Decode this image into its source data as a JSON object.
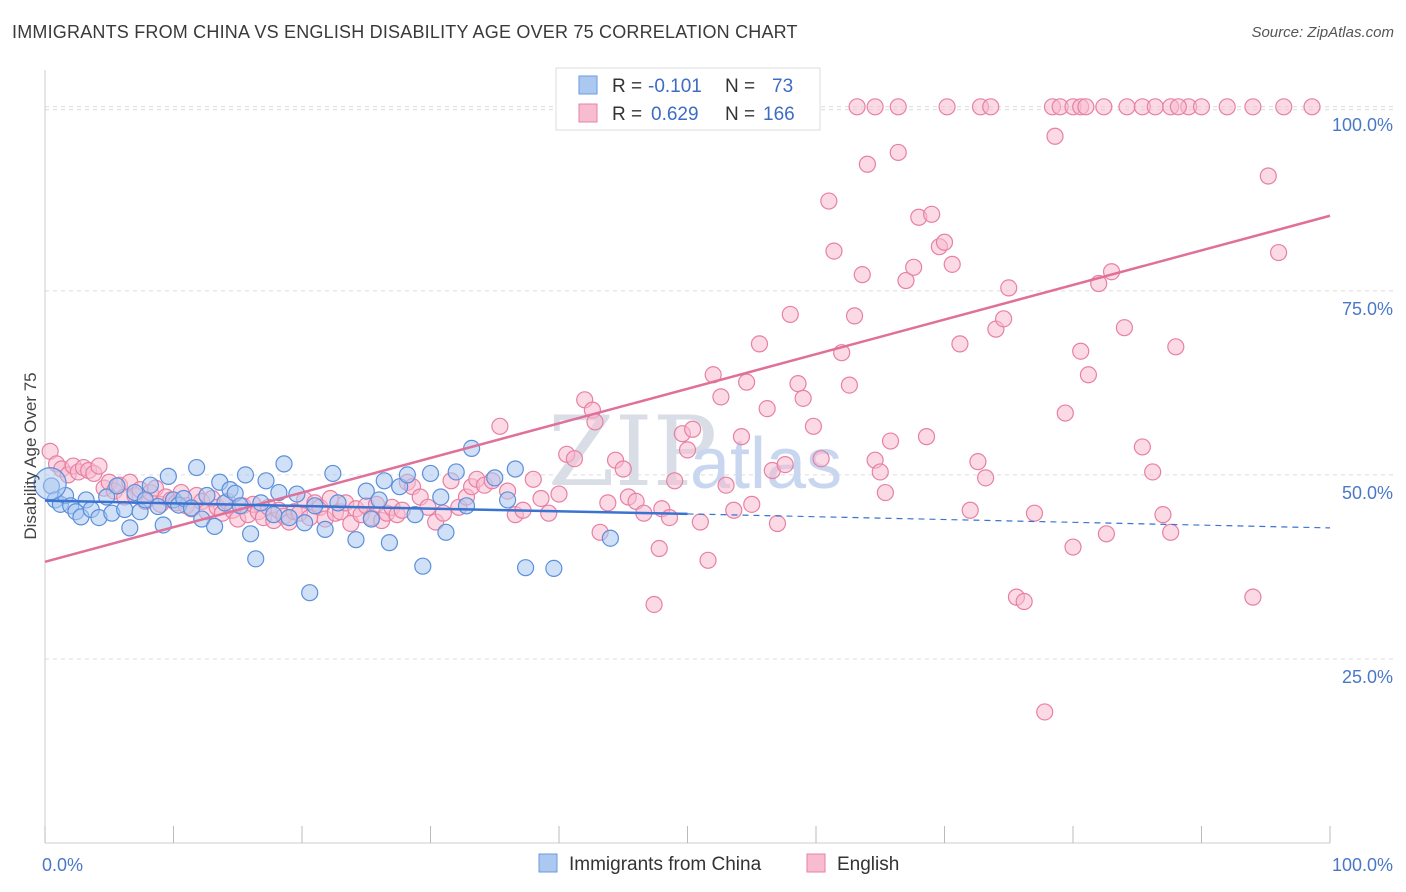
{
  "header": {
    "title": "IMMIGRANTS FROM CHINA VS ENGLISH DISABILITY AGE OVER 75 CORRELATION CHART",
    "source": "Source: ZipAtlas.com"
  },
  "watermark": {
    "zip": "ZIP",
    "atlas": "atlas"
  },
  "legend": {
    "rows": [
      {
        "r_label": "R = ",
        "r_value": "-0.101",
        "n_label": "N = ",
        "n_value": "73",
        "color": "#aac8f0",
        "stroke": "#6a9ae0"
      },
      {
        "r_label": "R = ",
        "r_value": "0.629",
        "n_label": "N = ",
        "n_value": "166",
        "color": "#f8bcd0",
        "stroke": "#e880a4"
      }
    ]
  },
  "chart_data": {
    "type": "scatter",
    "title": "IMMIGRANTS FROM CHINA VS ENGLISH DISABILITY AGE OVER 75 CORRELATION CHART",
    "xlabel": "",
    "ylabel": "Disability Age Over 75",
    "xlim": [
      0,
      100
    ],
    "ylim": [
      0,
      105
    ],
    "x_tick_labels": [
      "0.0%",
      "100.0%"
    ],
    "y_ticks": [
      25,
      50,
      75,
      100
    ],
    "y_tick_labels": [
      "25.0%",
      "50.0%",
      "75.0%",
      "100.0%"
    ],
    "grid": "horizontal-dashed",
    "legend_placement": "top-center",
    "series": [
      {
        "name": "Immigrants from China",
        "color": "#aac8f0",
        "stroke": "#5b8fdc",
        "line_color": "#3a73d0",
        "trend": {
          "x0": 0,
          "y0": 46.5,
          "x1": 50,
          "y1": 44.7,
          "dash_to_x": 100,
          "dash_to_y": 42.8
        },
        "points": [
          [
            0.5,
            48.5
          ],
          [
            0.8,
            46.6
          ],
          [
            1.2,
            46.0
          ],
          [
            1.6,
            47.2
          ],
          [
            2.0,
            45.8
          ],
          [
            2.4,
            45.0
          ],
          [
            2.8,
            44.3
          ],
          [
            3.2,
            46.6
          ],
          [
            3.6,
            45.3
          ],
          [
            4.2,
            44.2
          ],
          [
            4.8,
            47.0
          ],
          [
            5.2,
            44.8
          ],
          [
            5.6,
            48.5
          ],
          [
            6.2,
            45.3
          ],
          [
            6.6,
            42.8
          ],
          [
            7.0,
            47.6
          ],
          [
            7.4,
            45.0
          ],
          [
            7.8,
            46.6
          ],
          [
            8.2,
            48.6
          ],
          [
            8.8,
            45.7
          ],
          [
            9.2,
            43.2
          ],
          [
            9.6,
            49.8
          ],
          [
            10.0,
            46.6
          ],
          [
            10.4,
            45.9
          ],
          [
            10.8,
            46.8
          ],
          [
            11.4,
            45.5
          ],
          [
            11.8,
            51.0
          ],
          [
            12.2,
            44.0
          ],
          [
            12.6,
            47.2
          ],
          [
            13.2,
            43.0
          ],
          [
            13.6,
            49.0
          ],
          [
            14.0,
            46.2
          ],
          [
            14.4,
            48.0
          ],
          [
            14.8,
            47.5
          ],
          [
            15.2,
            45.8
          ],
          [
            15.6,
            50.0
          ],
          [
            16.0,
            42.0
          ],
          [
            16.4,
            38.6
          ],
          [
            16.8,
            46.2
          ],
          [
            17.2,
            49.2
          ],
          [
            17.8,
            44.6
          ],
          [
            18.2,
            47.6
          ],
          [
            18.6,
            51.5
          ],
          [
            19.0,
            44.2
          ],
          [
            19.6,
            47.4
          ],
          [
            20.2,
            43.5
          ],
          [
            20.6,
            34.0
          ],
          [
            21.0,
            45.8
          ],
          [
            21.8,
            42.6
          ],
          [
            22.4,
            50.2
          ],
          [
            22.8,
            46.2
          ],
          [
            24.2,
            41.2
          ],
          [
            25.0,
            47.8
          ],
          [
            25.4,
            44.0
          ],
          [
            26.0,
            46.6
          ],
          [
            26.4,
            49.2
          ],
          [
            26.8,
            40.8
          ],
          [
            27.6,
            48.4
          ],
          [
            28.2,
            50.0
          ],
          [
            28.8,
            44.6
          ],
          [
            29.4,
            37.6
          ],
          [
            30.0,
            50.2
          ],
          [
            30.8,
            47.0
          ],
          [
            31.2,
            42.2
          ],
          [
            32.0,
            50.4
          ],
          [
            32.8,
            45.8
          ],
          [
            33.2,
            53.6
          ],
          [
            35.0,
            49.6
          ],
          [
            36.0,
            46.6
          ],
          [
            36.6,
            50.8
          ],
          [
            37.4,
            37.4
          ],
          [
            39.6,
            37.3
          ],
          [
            44.0,
            41.4
          ]
        ]
      },
      {
        "name": "English",
        "color": "#f8bcd0",
        "stroke": "#e880a4",
        "line_color": "#e0709a",
        "trend": {
          "x0": 0,
          "y0": 38.2,
          "x1": 100,
          "y1": 85.2
        },
        "points": [
          [
            0.4,
            53.2
          ],
          [
            0.9,
            51.5
          ],
          [
            1.3,
            50.8
          ],
          [
            1.8,
            50.0
          ],
          [
            2.2,
            51.2
          ],
          [
            2.6,
            50.4
          ],
          [
            3.0,
            51.0
          ],
          [
            3.4,
            50.6
          ],
          [
            3.8,
            50.2
          ],
          [
            4.2,
            51.2
          ],
          [
            4.6,
            48.2
          ],
          [
            5.0,
            49.0
          ],
          [
            5.4,
            47.8
          ],
          [
            5.8,
            48.6
          ],
          [
            6.2,
            47.0
          ],
          [
            6.6,
            49.0
          ],
          [
            7.0,
            47.2
          ],
          [
            7.4,
            48.0
          ],
          [
            7.8,
            46.4
          ],
          [
            8.2,
            47.6
          ],
          [
            8.6,
            48.2
          ],
          [
            9.0,
            46.0
          ],
          [
            9.4,
            47.0
          ],
          [
            9.8,
            46.6
          ],
          [
            10.2,
            46.2
          ],
          [
            10.6,
            47.6
          ],
          [
            11.0,
            45.8
          ],
          [
            11.4,
            45.4
          ],
          [
            11.8,
            47.2
          ],
          [
            12.2,
            46.4
          ],
          [
            12.6,
            45.0
          ],
          [
            13.0,
            46.8
          ],
          [
            13.4,
            45.6
          ],
          [
            13.8,
            44.8
          ],
          [
            14.2,
            46.4
          ],
          [
            14.6,
            45.2
          ],
          [
            15.0,
            44.0
          ],
          [
            15.4,
            45.8
          ],
          [
            15.8,
            44.6
          ],
          [
            16.2,
            46.0
          ],
          [
            16.6,
            45.0
          ],
          [
            17.0,
            44.2
          ],
          [
            17.4,
            45.6
          ],
          [
            17.8,
            43.8
          ],
          [
            18.2,
            45.2
          ],
          [
            18.6,
            44.4
          ],
          [
            19.0,
            43.6
          ],
          [
            19.4,
            45.0
          ],
          [
            19.8,
            44.8
          ],
          [
            20.2,
            46.6
          ],
          [
            20.6,
            44.2
          ],
          [
            21.0,
            46.2
          ],
          [
            21.4,
            45.6
          ],
          [
            21.8,
            44.0
          ],
          [
            22.2,
            46.8
          ],
          [
            22.6,
            44.8
          ],
          [
            23.0,
            45.0
          ],
          [
            23.4,
            46.2
          ],
          [
            23.8,
            43.4
          ],
          [
            24.2,
            45.4
          ],
          [
            24.6,
            44.6
          ],
          [
            25.0,
            45.8
          ],
          [
            25.4,
            44.2
          ],
          [
            25.8,
            46.0
          ],
          [
            26.2,
            43.8
          ],
          [
            26.6,
            44.8
          ],
          [
            27.0,
            45.6
          ],
          [
            27.4,
            44.6
          ],
          [
            27.8,
            45.2
          ],
          [
            28.2,
            49.0
          ],
          [
            28.6,
            48.4
          ],
          [
            29.2,
            47.0
          ],
          [
            29.8,
            45.6
          ],
          [
            30.4,
            43.6
          ],
          [
            31.0,
            44.8
          ],
          [
            31.6,
            49.2
          ],
          [
            32.2,
            45.6
          ],
          [
            32.8,
            47.0
          ],
          [
            33.2,
            48.4
          ],
          [
            33.6,
            49.4
          ],
          [
            34.2,
            48.6
          ],
          [
            34.8,
            49.2
          ],
          [
            35.4,
            56.6
          ],
          [
            36.0,
            47.8
          ],
          [
            36.6,
            44.6
          ],
          [
            37.2,
            45.2
          ],
          [
            38.0,
            49.4
          ],
          [
            38.6,
            46.8
          ],
          [
            39.2,
            44.8
          ],
          [
            40.0,
            47.4
          ],
          [
            40.6,
            52.8
          ],
          [
            41.2,
            52.2
          ],
          [
            42.0,
            60.2
          ],
          [
            42.6,
            58.8
          ],
          [
            42.8,
            57.2
          ],
          [
            43.2,
            42.2
          ],
          [
            43.8,
            46.2
          ],
          [
            44.4,
            52.0
          ],
          [
            45.0,
            50.8
          ],
          [
            45.4,
            47.0
          ],
          [
            46.0,
            46.4
          ],
          [
            46.6,
            44.8
          ],
          [
            47.4,
            32.4
          ],
          [
            47.8,
            40.0
          ],
          [
            48.0,
            45.4
          ],
          [
            48.6,
            44.2
          ],
          [
            49.0,
            49.2
          ],
          [
            49.6,
            55.6
          ],
          [
            50.0,
            53.4
          ],
          [
            50.4,
            56.2
          ],
          [
            51.0,
            43.6
          ],
          [
            51.6,
            38.4
          ],
          [
            52.0,
            63.6
          ],
          [
            52.6,
            60.6
          ],
          [
            53.0,
            48.6
          ],
          [
            53.6,
            45.2
          ],
          [
            54.2,
            55.2
          ],
          [
            54.6,
            62.6
          ],
          [
            55.0,
            46.0
          ],
          [
            55.6,
            67.8
          ],
          [
            56.2,
            59.0
          ],
          [
            56.6,
            50.6
          ],
          [
            57.0,
            43.4
          ],
          [
            57.6,
            51.4
          ],
          [
            58.0,
            71.8
          ],
          [
            58.6,
            62.4
          ],
          [
            59.0,
            60.4
          ],
          [
            59.8,
            56.6
          ],
          [
            60.4,
            52.2
          ],
          [
            61.0,
            87.2
          ],
          [
            61.4,
            80.4
          ],
          [
            62.0,
            66.6
          ],
          [
            62.6,
            62.2
          ],
          [
            63.0,
            71.6
          ],
          [
            63.6,
            77.2
          ],
          [
            64.0,
            92.2
          ],
          [
            64.6,
            52.0
          ],
          [
            65.0,
            50.4
          ],
          [
            65.4,
            47.6
          ],
          [
            65.8,
            54.6
          ],
          [
            66.4,
            93.8
          ],
          [
            67.0,
            76.4
          ],
          [
            67.6,
            78.2
          ],
          [
            68.0,
            85.0
          ],
          [
            68.6,
            55.2
          ],
          [
            69.0,
            85.4
          ],
          [
            69.6,
            81.0
          ],
          [
            70.0,
            81.6
          ],
          [
            70.6,
            78.6
          ],
          [
            71.2,
            67.8
          ],
          [
            72.0,
            45.2
          ],
          [
            72.6,
            51.8
          ],
          [
            73.2,
            49.6
          ],
          [
            74.0,
            69.8
          ],
          [
            74.6,
            71.2
          ],
          [
            75.0,
            75.4
          ],
          [
            75.6,
            33.4
          ],
          [
            76.2,
            32.8
          ],
          [
            77.0,
            44.8
          ],
          [
            77.8,
            17.8
          ],
          [
            78.6,
            96.0
          ],
          [
            79.4,
            58.4
          ],
          [
            80.0,
            40.2
          ],
          [
            80.6,
            66.8
          ],
          [
            81.2,
            63.6
          ],
          [
            82.0,
            76.0
          ],
          [
            82.6,
            42.0
          ],
          [
            83.0,
            77.6
          ],
          [
            84.0,
            70.0
          ],
          [
            85.4,
            53.8
          ],
          [
            86.2,
            50.4
          ],
          [
            87.0,
            44.6
          ],
          [
            87.6,
            42.2
          ],
          [
            88.0,
            67.4
          ],
          [
            89.0,
            100.0
          ],
          [
            90.0,
            100.0
          ],
          [
            92.0,
            100.0
          ],
          [
            94.0,
            33.4
          ],
          [
            95.2,
            90.6
          ],
          [
            96.0,
            80.2
          ]
        ]
      }
    ],
    "top_cluster": [
      [
        63.2,
        100
      ],
      [
        64.6,
        100
      ],
      [
        66.4,
        100
      ],
      [
        70.2,
        100
      ],
      [
        72.8,
        100
      ],
      [
        73.6,
        100
      ],
      [
        78.4,
        100
      ],
      [
        79.0,
        100
      ],
      [
        80.0,
        100
      ],
      [
        80.6,
        100
      ],
      [
        81.0,
        100
      ],
      [
        82.4,
        100
      ],
      [
        84.2,
        100
      ],
      [
        85.4,
        100
      ],
      [
        86.4,
        100
      ],
      [
        87.6,
        100
      ],
      [
        88.2,
        100
      ],
      [
        94.0,
        100
      ],
      [
        96.4,
        100
      ],
      [
        98.6,
        100
      ]
    ]
  },
  "bottom_legend": {
    "items": [
      {
        "label": "Immigrants from China",
        "color": "#aac8f0",
        "stroke": "#6a9ae0"
      },
      {
        "label": "English",
        "color": "#f8bcd0",
        "stroke": "#e880a4"
      }
    ]
  }
}
